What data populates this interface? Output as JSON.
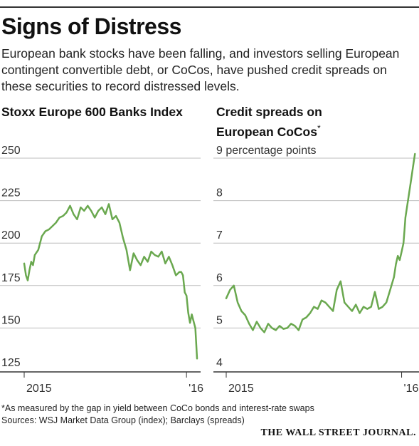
{
  "header": {
    "title": "Signs of Distress",
    "subtitle": "European bank stocks have been falling, and investors selling European contingent convertible debt, or CoCos, have pushed credit spreads on these securities to record distressed levels."
  },
  "colors": {
    "line": "#6aa84f",
    "grid": "#bdbdbd",
    "axis": "#333333"
  },
  "footer": {
    "note": "*As measured by the gap in yield between CoCo bonds and interest-rate swaps",
    "sources": "Sources: WSJ Market Data Group (index); Barclays (spreads)",
    "logo": "THE WALL STREET JOURNAL."
  },
  "chart_data": [
    {
      "type": "line",
      "title": "Stoxx Europe 600 Banks Index",
      "ylim": [
        125,
        250
      ],
      "yticks": [
        250,
        225,
        200,
        175,
        150,
        125
      ],
      "ytick_labels": [
        "250",
        "225",
        "200",
        "175",
        "150",
        "125"
      ],
      "xlim": [
        0,
        1
      ],
      "xticks": [
        {
          "x": 0.0,
          "label": "2015"
        },
        {
          "x": 0.92,
          "label": "'16"
        }
      ],
      "grid": true,
      "series": [
        {
          "x": [
            0.0,
            0.01,
            0.02,
            0.03,
            0.04,
            0.05,
            0.06,
            0.08,
            0.1,
            0.12,
            0.14,
            0.16,
            0.18,
            0.2,
            0.22,
            0.24,
            0.26,
            0.28,
            0.3,
            0.32,
            0.34,
            0.36,
            0.38,
            0.4,
            0.42,
            0.44,
            0.46,
            0.48,
            0.5,
            0.52,
            0.54,
            0.56,
            0.58,
            0.6,
            0.62,
            0.64,
            0.66,
            0.68,
            0.7,
            0.72,
            0.74,
            0.76,
            0.78,
            0.8,
            0.82,
            0.84,
            0.86,
            0.88,
            0.89,
            0.9,
            0.91,
            0.92,
            0.93,
            0.94,
            0.95,
            0.96,
            0.97,
            0.98
          ],
          "y": [
            188,
            181,
            178,
            184,
            189,
            187,
            193,
            196,
            204,
            207,
            208,
            210,
            212,
            215,
            216,
            218,
            222,
            217,
            214,
            221,
            219,
            222,
            219,
            215,
            219,
            221,
            217,
            223,
            214,
            216,
            212,
            203,
            196,
            184,
            194,
            190,
            187,
            192,
            189,
            195,
            193,
            192,
            195,
            188,
            192,
            187,
            181,
            183,
            183,
            181,
            171,
            169,
            159,
            153,
            158,
            154,
            150,
            132
          ]
        }
      ]
    },
    {
      "type": "line",
      "title": "Credit spreads on European CoCos",
      "title_marker": "*",
      "ylim": [
        4,
        9
      ],
      "yticks": [
        9,
        8,
        7,
        6,
        5,
        4
      ],
      "ytick_labels": [
        "9 percentage points",
        "8",
        "7",
        "6",
        "5",
        "4"
      ],
      "xlim": [
        0,
        1
      ],
      "xticks": [
        {
          "x": 0.0,
          "label": "2015"
        },
        {
          "x": 0.92,
          "label": "'16"
        }
      ],
      "grid": true,
      "series": [
        {
          "x": [
            0.0,
            0.02,
            0.04,
            0.06,
            0.08,
            0.1,
            0.12,
            0.14,
            0.16,
            0.18,
            0.2,
            0.22,
            0.24,
            0.26,
            0.28,
            0.3,
            0.32,
            0.34,
            0.36,
            0.38,
            0.4,
            0.42,
            0.44,
            0.46,
            0.48,
            0.5,
            0.52,
            0.54,
            0.56,
            0.58,
            0.6,
            0.62,
            0.64,
            0.66,
            0.68,
            0.7,
            0.72,
            0.74,
            0.76,
            0.78,
            0.8,
            0.82,
            0.84,
            0.86,
            0.88,
            0.89,
            0.9,
            0.91,
            0.92,
            0.93,
            0.935,
            0.94,
            0.95,
            0.96,
            0.97,
            0.98,
            0.99
          ],
          "y": [
            5.7,
            5.9,
            6.0,
            5.6,
            5.4,
            5.3,
            5.1,
            4.95,
            5.15,
            5.0,
            4.9,
            5.1,
            5.0,
            4.95,
            5.05,
            4.98,
            5.0,
            5.1,
            5.05,
            4.95,
            5.2,
            5.25,
            5.35,
            5.5,
            5.45,
            5.65,
            5.6,
            5.5,
            5.4,
            5.9,
            6.1,
            5.6,
            5.5,
            5.4,
            5.55,
            5.35,
            5.5,
            5.45,
            5.5,
            5.85,
            5.45,
            5.5,
            5.6,
            5.9,
            6.2,
            6.5,
            6.7,
            6.6,
            6.8,
            7.0,
            7.3,
            7.6,
            7.9,
            8.2,
            8.5,
            8.8,
            9.1
          ]
        }
      ]
    }
  ]
}
